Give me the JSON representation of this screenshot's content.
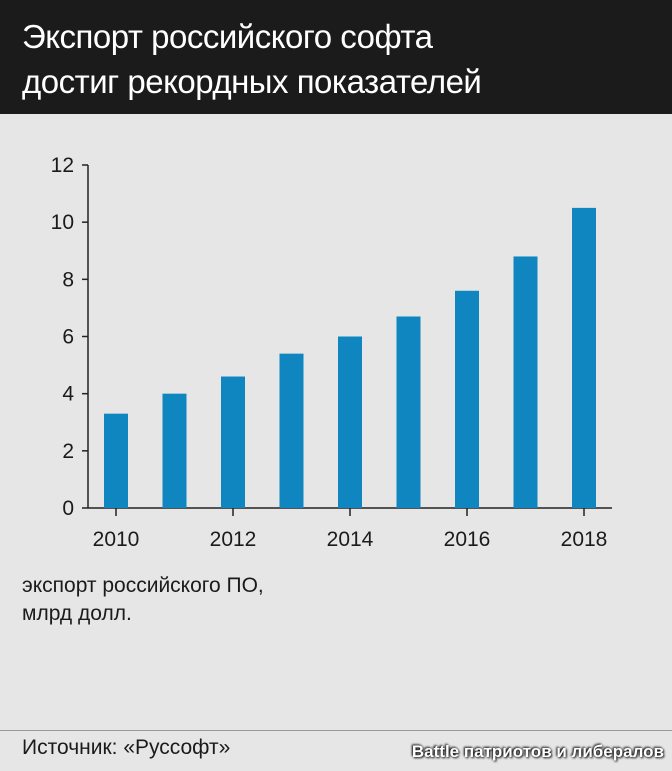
{
  "header": {
    "title_line1": "Экспорт российского софта",
    "title_line2": "достиг рекордных показателей"
  },
  "colors": {
    "header_bg": "#1b1b1b",
    "panel_bg": "#e6e6e6",
    "bar": "#0f86bf",
    "axis": "#222222"
  },
  "chart_data": {
    "type": "bar",
    "categories": [
      "2010",
      "2011",
      "2012",
      "2013",
      "2014",
      "2015",
      "2016",
      "2017",
      "2018"
    ],
    "values": [
      3.3,
      4.0,
      4.6,
      5.4,
      6.0,
      6.7,
      7.6,
      8.8,
      10.5
    ],
    "x_tick_labels": [
      "2010",
      "2012",
      "2014",
      "2016",
      "2018"
    ],
    "y_ticks": [
      0,
      2,
      4,
      6,
      8,
      10,
      12
    ],
    "ylim": [
      0,
      12
    ],
    "grid": false,
    "legend": "none"
  },
  "note": {
    "line1": "экспорт российского ПО,",
    "line2": "млрд долл."
  },
  "footer": {
    "source": "Источник: «Руссофт»",
    "watermark": "Battle патриотов и либералов"
  }
}
